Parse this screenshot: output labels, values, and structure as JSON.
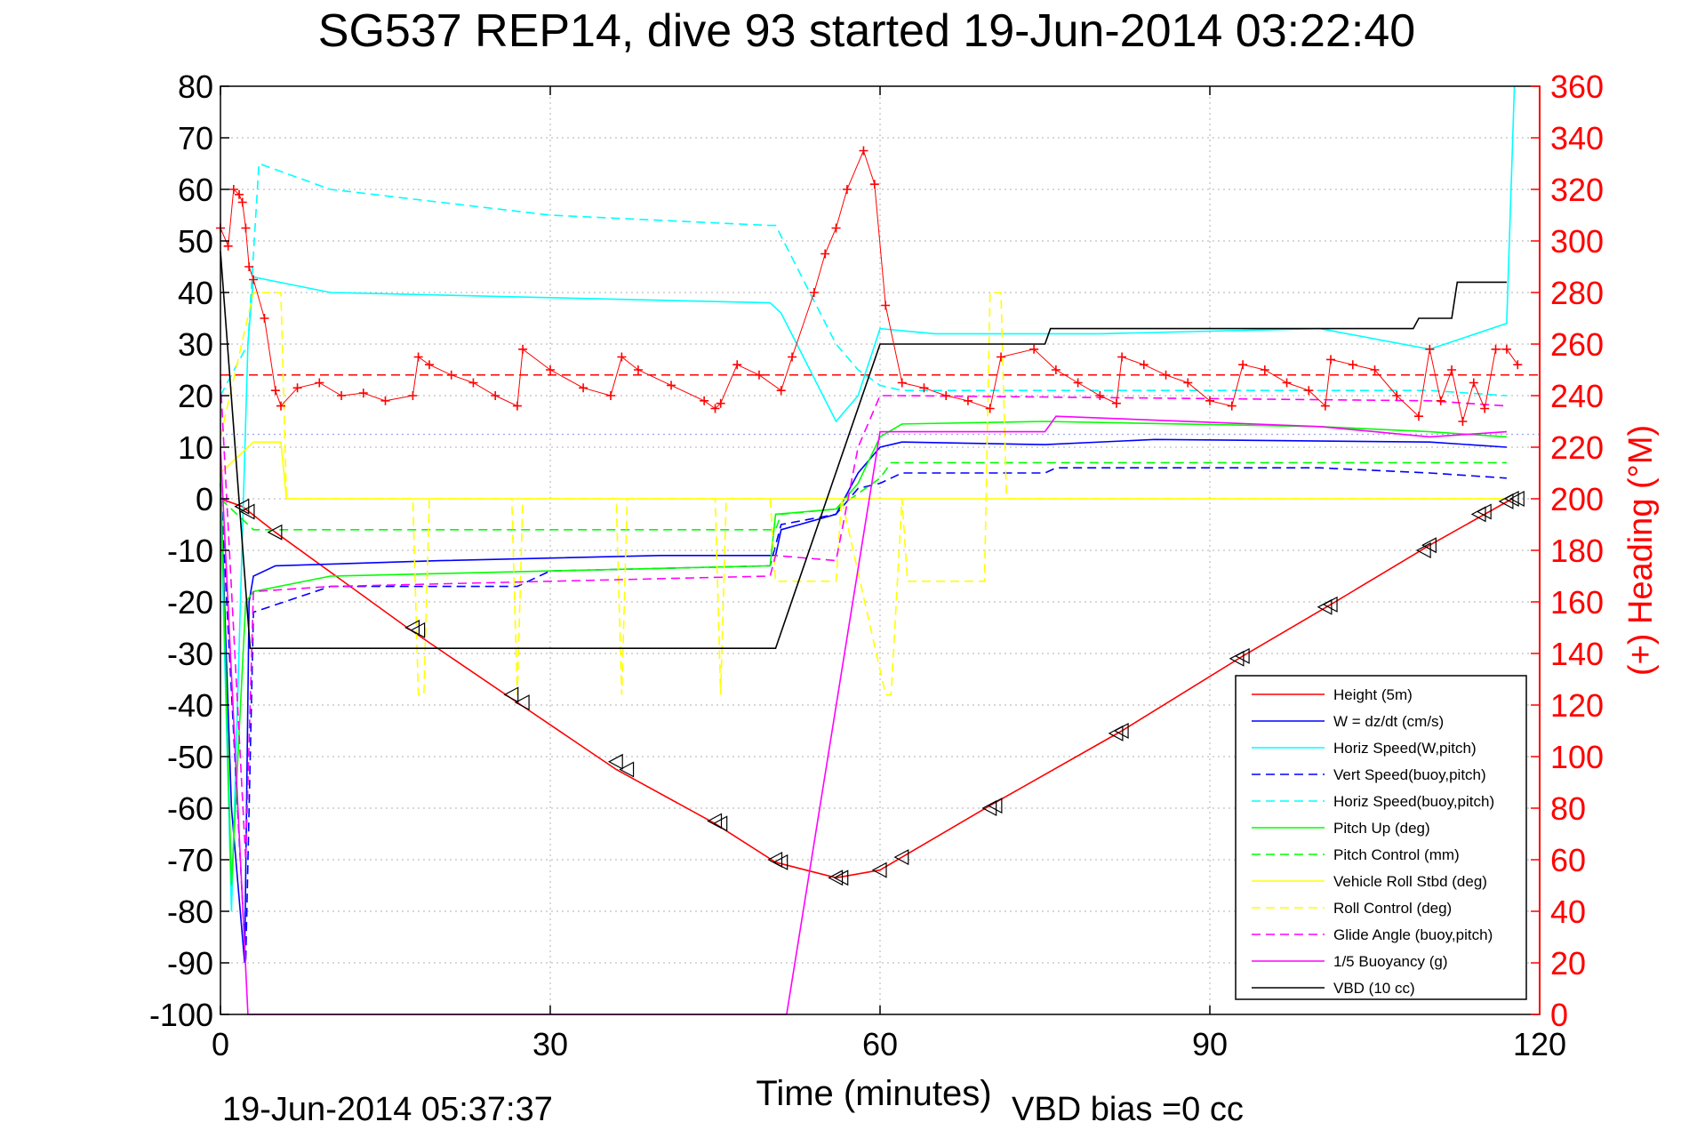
{
  "chart_data": {
    "type": "line",
    "title": "SG537 REP14, dive 93 started 19-Jun-2014 03:22:40",
    "xlabel": "Time (minutes)",
    "ylabel": "",
    "y2label": "(+) Heading (°M)",
    "footer_left": "19-Jun-2014 05:37:37",
    "footer_right": "VBD bias =0 cc",
    "xlim": [
      0,
      120
    ],
    "ylim": [
      -100,
      80
    ],
    "y2lim": [
      0,
      360
    ],
    "xticks": [
      "0",
      "30",
      "60",
      "90",
      "120"
    ],
    "yticks": [
      "80",
      "70",
      "60",
      "50",
      "40",
      "30",
      "20",
      "10",
      "0",
      "-10",
      "-20",
      "-30",
      "-40",
      "-50",
      "-60",
      "-70",
      "-80",
      "-90",
      "-100"
    ],
    "y2ticks": [
      "360",
      "340",
      "320",
      "300",
      "280",
      "260",
      "240",
      "220",
      "200",
      "180",
      "160",
      "140",
      "120",
      "100",
      "80",
      "60",
      "40",
      "20",
      "0"
    ],
    "grid": true,
    "legend_position": "bottom-right",
    "colors": {
      "heading_axis": "#ff0000",
      "axis": "#000000",
      "grid": "#b0b0b0"
    },
    "legend": [
      {
        "label": "Height (5m)",
        "color": "#ff0000",
        "dash": "solid"
      },
      {
        "label": "W = dz/dt (cm/s)",
        "color": "#0000ff",
        "dash": "solid"
      },
      {
        "label": "Horiz Speed(W,pitch)",
        "color": "#00ffff",
        "dash": "solid"
      },
      {
        "label": "Vert Speed(buoy,pitch)",
        "color": "#0000ff",
        "dash": "dashed"
      },
      {
        "label": "Horiz Speed(buoy,pitch)",
        "color": "#00ffff",
        "dash": "dashed"
      },
      {
        "label": "Pitch Up (deg)",
        "color": "#00ff00",
        "dash": "solid"
      },
      {
        "label": "Pitch Control (mm)",
        "color": "#00ff00",
        "dash": "dashed"
      },
      {
        "label": "Vehicle Roll Stbd (deg)",
        "color": "#ffff00",
        "dash": "solid"
      },
      {
        "label": "Roll Control (deg)",
        "color": "#ffff00",
        "dash": "dashed"
      },
      {
        "label": "Glide Angle (buoy,pitch)",
        "color": "#ff00ff",
        "dash": "dashed"
      },
      {
        "label": "1/5 Buoyancy (g)",
        "color": "#ff00ff",
        "dash": "solid"
      },
      {
        "label": "VBD (10 cc)",
        "color": "#000000",
        "dash": "solid"
      }
    ],
    "series": [
      {
        "name": "Height (5m)",
        "color": "#ff0000",
        "dash": "solid",
        "x": [
          0,
          2,
          5,
          17,
          27,
          36,
          45,
          50.5,
          56,
          60,
          62,
          70,
          82,
          93,
          101,
          110,
          117.5
        ],
        "y": [
          0,
          -1.5,
          -6.5,
          -25,
          -39.5,
          -52.5,
          -63,
          -70.5,
          -73.5,
          -72,
          -69.5,
          -59.5,
          -45,
          -30.5,
          -20.5,
          -9,
          0
        ]
      },
      {
        "name": "W = dz/dt (cm/s)",
        "color": "#0000ff",
        "dash": "solid",
        "x": [
          0,
          1,
          2.2,
          2.6,
          3,
          5,
          20,
          40,
          50.5,
          51,
          56,
          58,
          60,
          62,
          75,
          85,
          110,
          117
        ],
        "y": [
          3,
          -60,
          -90,
          -20,
          -15,
          -13,
          -12,
          -11,
          -11,
          -6,
          -3,
          5,
          10,
          11,
          10.5,
          11.5,
          11,
          10
        ]
      },
      {
        "name": "Horiz Speed(W,pitch)",
        "color": "#00ffff",
        "dash": "solid",
        "x": [
          0,
          1,
          2.5,
          3,
          10,
          30,
          50,
          51,
          56,
          58,
          60,
          65,
          80,
          100,
          110,
          117,
          117.7
        ],
        "y": [
          0,
          -80,
          30,
          43,
          40,
          39,
          38,
          36,
          15,
          20,
          33,
          32,
          32,
          33,
          29,
          34,
          80
        ]
      },
      {
        "name": "Vert Speed(buoy,pitch)",
        "color": "#0000ff",
        "dash": "dashed",
        "x": [
          0,
          2.3,
          3,
          10,
          27,
          30,
          50,
          51,
          56,
          58,
          60,
          62,
          75,
          76,
          100,
          110,
          117
        ],
        "y": [
          3,
          -90,
          -22,
          -17,
          -17,
          -14,
          -13,
          -5,
          -3,
          2,
          3,
          5,
          5,
          6,
          6,
          5,
          4
        ]
      },
      {
        "name": "Horiz Speed(buoy,pitch)",
        "color": "#00ffff",
        "dash": "dashed",
        "x": [
          0,
          2.5,
          3.5,
          10,
          30,
          50,
          50.5,
          56,
          58,
          60,
          62,
          110,
          117
        ],
        "y": [
          20,
          30,
          65,
          60,
          55,
          53,
          53,
          30,
          25,
          22,
          21,
          21,
          20
        ]
      },
      {
        "name": "Pitch Up (deg)",
        "color": "#00ff00",
        "dash": "solid",
        "x": [
          0,
          1,
          2.3,
          3,
          10,
          30,
          50,
          50.5,
          56,
          58,
          60,
          62,
          75,
          100,
          110,
          117
        ],
        "y": [
          5,
          -75,
          -20,
          -18,
          -15,
          -14,
          -13,
          -3,
          -2,
          3,
          12,
          14.5,
          15,
          14,
          13,
          12
        ]
      },
      {
        "name": "Pitch Control (mm)",
        "color": "#00ff00",
        "dash": "dashed",
        "x": [
          0,
          3,
          50.5,
          51,
          56,
          60,
          61,
          117
        ],
        "y": [
          0,
          -6,
          -6,
          -3,
          -2,
          4,
          7,
          7
        ]
      },
      {
        "name": "Vehicle Roll Stbd (deg)",
        "color": "#ffff00",
        "dash": "solid",
        "x": [
          0,
          3,
          5.5,
          6,
          117
        ],
        "y": [
          5,
          11,
          11,
          0,
          0
        ]
      },
      {
        "name": "Roll Control (deg)",
        "color": "#ffff00",
        "dash": "dashed",
        "x": [
          0,
          3,
          5.5,
          6,
          17.5,
          18,
          18.5,
          19,
          26.5,
          27,
          27.5,
          36,
          36.5,
          37,
          45,
          45.5,
          46,
          50,
          50.5,
          56,
          56.5,
          60.5,
          61,
          62,
          62.5,
          69.5,
          70,
          71,
          71.5,
          117
        ],
        "y": [
          12,
          40,
          40,
          0,
          0,
          -38,
          -38,
          0,
          0,
          -38,
          0,
          0,
          -38,
          0,
          0,
          -38,
          0,
          0,
          -16,
          -16,
          0,
          -38,
          -38,
          0,
          -16,
          -16,
          40,
          40,
          0,
          0
        ]
      },
      {
        "name": "Glide Angle (buoy,pitch)",
        "color": "#ff00ff",
        "dash": "dashed",
        "x": [
          0,
          2.3,
          3,
          10,
          30,
          50,
          50.5,
          56,
          58,
          60,
          62,
          110,
          117
        ],
        "y": [
          23,
          -70,
          -18,
          -17,
          -16,
          -15,
          -11,
          -12,
          10,
          20,
          20,
          19,
          18
        ]
      },
      {
        "name": "1/5 Buoyancy (g)",
        "color": "#ff00ff",
        "dash": "solid",
        "x": [
          0,
          2.5,
          2.6,
          51.5,
          60,
          75,
          76,
          100,
          110,
          117
        ],
        "y": [
          10,
          -100,
          -100,
          -100,
          13,
          13,
          16,
          14,
          12,
          13
        ]
      },
      {
        "name": "VBD (10 cc)",
        "color": "#000000",
        "dash": "solid",
        "x": [
          0,
          2.7,
          3,
          50.5,
          60,
          75,
          75.5,
          108.5,
          109,
          112,
          112.5,
          117
        ],
        "y": [
          48,
          -29,
          -29,
          -29,
          30,
          30,
          33,
          33,
          35,
          35,
          42,
          42
        ]
      }
    ],
    "heading_series": {
      "name": "(+) Heading",
      "color": "#ff0000",
      "marker": "+",
      "x": [
        0,
        0.7,
        1.2,
        1.7,
        2,
        2.3,
        2.6,
        3,
        4,
        5,
        5.5,
        7,
        9,
        11,
        13,
        15,
        17.5,
        18,
        19,
        21,
        23,
        25,
        27,
        27.5,
        30,
        33,
        35.5,
        36.5,
        38,
        41,
        44,
        45,
        45.5,
        47,
        49,
        51,
        52,
        54,
        55,
        56,
        57,
        58.5,
        59.5,
        60.5,
        62,
        64,
        66,
        68,
        70,
        71,
        74,
        76,
        78,
        80,
        81.5,
        82,
        84,
        86,
        88,
        90,
        92,
        93,
        95,
        97,
        99,
        100.5,
        101,
        103,
        105,
        107,
        109,
        110,
        111,
        112,
        113,
        114,
        115,
        116,
        117,
        118
      ],
      "y": [
        305,
        298,
        320,
        318,
        315,
        305,
        290,
        285,
        270,
        242,
        236,
        243,
        245,
        240,
        241,
        238,
        240,
        255,
        252,
        248,
        245,
        240,
        236,
        258,
        250,
        243,
        240,
        255,
        250,
        244,
        238,
        235,
        237,
        252,
        248,
        242,
        255,
        280,
        295,
        305,
        320,
        335,
        322,
        275,
        245,
        243,
        240,
        238,
        235,
        255,
        258,
        250,
        245,
        240,
        237,
        255,
        252,
        248,
        245,
        238,
        236,
        252,
        250,
        245,
        242,
        236,
        254,
        252,
        250,
        240,
        232,
        258,
        238,
        250,
        230,
        245,
        235,
        258,
        258,
        252
      ]
    },
    "reference_lines": [
      {
        "color": "#ff0000",
        "dash": "dashed",
        "y": 24,
        "axis": "left"
      },
      {
        "color": "#aaaaff",
        "dash": "dotted",
        "y": 12.5,
        "axis": "left"
      }
    ],
    "markers": {
      "symbol": "triangle-left",
      "x": [
        2,
        2.5,
        5,
        17.5,
        18,
        26.5,
        27.5,
        36,
        37,
        45,
        45.5,
        50.5,
        51,
        56,
        56.5,
        60,
        62,
        70,
        70.5,
        81.5,
        82,
        92.5,
        93,
        100.5,
        101,
        109.5,
        110,
        114.5,
        115,
        117,
        117.5,
        118
      ],
      "y": [
        -1.5,
        -2.5,
        -6.5,
        -25,
        -25.5,
        -38,
        -39.5,
        -51,
        -52.5,
        -62.5,
        -63,
        -70,
        -70.5,
        -73.5,
        -73.5,
        -72,
        -69.5,
        -60,
        -59.5,
        -45.5,
        -45,
        -31,
        -30.5,
        -21,
        -20.5,
        -10,
        -9,
        -3,
        -2.5,
        -0.5,
        0,
        0
      ]
    }
  }
}
